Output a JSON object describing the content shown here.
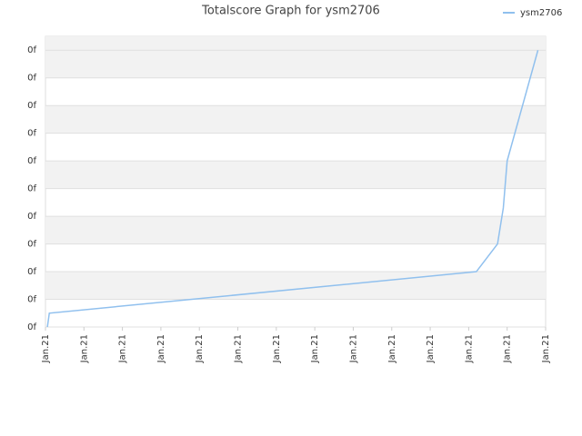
{
  "chart_data": {
    "type": "line",
    "title": "Totalscore Graph for ysm2706",
    "x": [
      0.05,
      0.1,
      11.2,
      11.75,
      11.9,
      12.0,
      12.8
    ],
    "series": [
      {
        "name": "ysm2706",
        "color": "#90c0ee",
        "values": [
          0,
          0.5,
          2,
          3,
          4.3,
          6,
          10
        ]
      }
    ],
    "xlim": [
      0,
      13
    ],
    "xticks": [
      {
        "value": 0,
        "label": "Jan.21"
      },
      {
        "value": 1,
        "label": "Jan.21"
      },
      {
        "value": 2,
        "label": "Jan.21"
      },
      {
        "value": 3,
        "label": "Jan.21"
      },
      {
        "value": 4,
        "label": "Jan.21"
      },
      {
        "value": 5,
        "label": "Jan.21"
      },
      {
        "value": 6,
        "label": "Jan.21"
      },
      {
        "value": 7,
        "label": "Jan.21"
      },
      {
        "value": 8,
        "label": "Jan.21"
      },
      {
        "value": 9,
        "label": "Jan.21"
      },
      {
        "value": 10,
        "label": "Jan.21"
      },
      {
        "value": 11,
        "label": "Jan.21"
      },
      {
        "value": 12,
        "label": "Jan.21"
      },
      {
        "value": 13,
        "label": "Jan.21"
      }
    ],
    "ylim": [
      0,
      10.5
    ],
    "yticks": [
      {
        "value": 0,
        "label": "0f"
      },
      {
        "value": 1,
        "label": "0f"
      },
      {
        "value": 2,
        "label": "0f"
      },
      {
        "value": 3,
        "label": "0f"
      },
      {
        "value": 4,
        "label": "0f"
      },
      {
        "value": 5,
        "label": "0f"
      },
      {
        "value": 6,
        "label": "0f"
      },
      {
        "value": 7,
        "label": "0f"
      },
      {
        "value": 8,
        "label": "0f"
      },
      {
        "value": 9,
        "label": "0f"
      },
      {
        "value": 10,
        "label": "0f"
      }
    ],
    "grid": true,
    "legend": "top-right"
  }
}
